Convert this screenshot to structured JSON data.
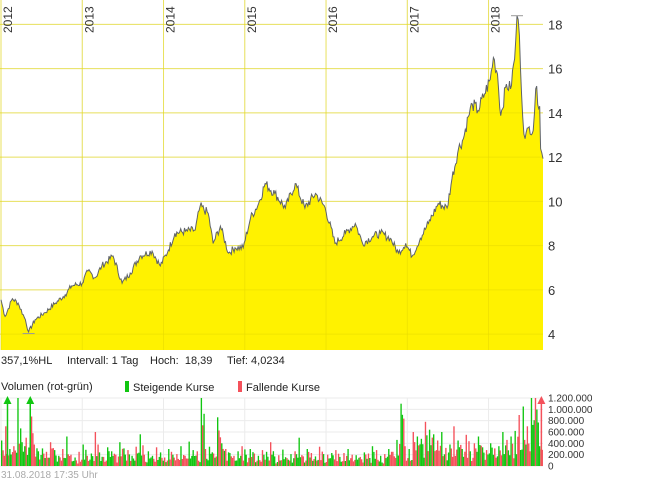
{
  "chart_data": {
    "type": "area",
    "price": {
      "x_years": [
        2012.0,
        2012.05,
        2012.14,
        2012.21,
        2012.3,
        2012.34,
        2012.42,
        2012.54,
        2012.67,
        2012.79,
        2012.87,
        2013.0,
        2013.07,
        2013.16,
        2013.24,
        2013.38,
        2013.49,
        2013.59,
        2013.71,
        2013.86,
        2013.96,
        2014.06,
        2014.14,
        2014.27,
        2014.39,
        2014.45,
        2014.55,
        2014.61,
        2014.7,
        2014.8,
        2014.88,
        2014.98,
        2015.07,
        2015.17,
        2015.25,
        2015.37,
        2015.5,
        2015.62,
        2015.74,
        2015.87,
        2015.99,
        2016.11,
        2016.24,
        2016.36,
        2016.45,
        2016.57,
        2016.67,
        2016.79,
        2016.89,
        2016.98,
        2017.06,
        2017.16,
        2017.26,
        2017.38,
        2017.49,
        2017.55,
        2017.63,
        2017.69,
        2017.75,
        2017.8,
        2017.87,
        2017.95,
        2018.02,
        2018.06,
        2018.11,
        2018.15,
        2018.22,
        2018.27,
        2018.32,
        2018.35,
        2018.38,
        2018.42,
        2018.45,
        2018.5,
        2018.55,
        2018.58,
        2018.63,
        2018.64,
        2018.67
      ],
      "values": [
        5.55,
        4.8,
        5.6,
        5.4,
        4.65,
        4.1,
        4.65,
        4.97,
        5.4,
        5.78,
        6.18,
        6.3,
        6.85,
        6.55,
        7.08,
        7.53,
        6.3,
        6.76,
        7.53,
        7.75,
        7.08,
        7.8,
        8.56,
        8.65,
        8.7,
        9.78,
        9.46,
        8.1,
        8.88,
        7.66,
        7.9,
        7.9,
        9.24,
        9.9,
        10.8,
        10.36,
        9.7,
        10.8,
        9.7,
        10.36,
        9.7,
        8.1,
        8.56,
        9.0,
        8.1,
        8.4,
        8.56,
        8.33,
        7.66,
        8.1,
        7.53,
        8.33,
        9.0,
        9.9,
        9.7,
        11.03,
        12.38,
        12.83,
        13.82,
        14.4,
        14.1,
        14.85,
        15.5,
        16.5,
        15.75,
        13.87,
        15.3,
        15.08,
        16.43,
        18.39,
        17.5,
        13.82,
        12.83,
        13.37,
        13.2,
        15.08,
        14.3,
        12.38,
        11.93
      ],
      "ylim": [
        3.28,
        19.1
      ],
      "xlim": [
        2012.0,
        2018.67
      ],
      "y_ticks": [
        "4",
        "6",
        "8",
        "10",
        "12",
        "14",
        "16",
        "18"
      ],
      "x_ticks": [
        "2012",
        "2013",
        "2014",
        "2015",
        "2016",
        "2017",
        "2018"
      ],
      "fill_color": "#fff200",
      "line_color": "#5f6368",
      "high_marker": 18.39,
      "low_marker": 4.0234
    },
    "volume": {
      "title": "Volumen (rot-grün)",
      "legend": [
        {
          "label": "Steigende Kurse",
          "color": "#11c611"
        },
        {
          "label": "Fallende Kurse",
          "color": "#f4515b"
        }
      ],
      "ylim": [
        0,
        1200000
      ],
      "y_ticks": [
        "0",
        "200.000",
        "400.000",
        "600.000",
        "800.000",
        "1.000.000",
        "1.200.000"
      ],
      "unit_note": "values in thousands; positive = rising (green), negative = falling (red)",
      "values_k": [
        450,
        -700,
        300,
        -350,
        1300,
        420,
        -500,
        1300,
        -380,
        260,
        310,
        -250,
        -420,
        280,
        180,
        -300,
        520,
        -200,
        150,
        -250,
        380,
        -180,
        220,
        -600,
        240,
        -160,
        330,
        260,
        -200,
        420,
        310,
        -280,
        180,
        -340,
        560,
        -200,
        260,
        180,
        -330,
        240,
        -150,
        300,
        200,
        -210,
        350,
        -180,
        430,
        280,
        -260,
        1250,
        -300,
        340,
        -220,
        860,
        400,
        -300,
        230,
        -180,
        260,
        -350,
        200,
        300,
        -220,
        180,
        -280,
        250,
        -420,
        170,
        -190,
        290,
        -140,
        210,
        -260,
        500,
        -170,
        300,
        -230,
        170,
        -340,
        210,
        -200,
        230,
        -280,
        160,
        -230,
        300,
        -200,
        190,
        -160,
        240,
        -220,
        350,
        -280,
        180,
        -210,
        300,
        -250,
        460,
        1100,
        -350,
        300,
        -600,
        520,
        480,
        -780,
        640,
        560,
        -450,
        600,
        -320,
        380,
        -700,
        450,
        300,
        -550,
        260,
        -400,
        520,
        330,
        -280,
        400,
        -310,
        350,
        600,
        -460,
        520,
        620,
        -900,
        1050,
        -700,
        1300,
        -1300,
        350
      ],
      "overflow_markers": [
        {
          "year": 2012.08,
          "color": "#11c611"
        },
        {
          "year": 2012.36,
          "color": "#11c611"
        },
        {
          "year": 2018.65,
          "color": "#f4515b"
        }
      ]
    }
  },
  "info": {
    "performance": "357,1%HL",
    "interval": "Intervall: 1 Tag",
    "high_label": "Hoch:",
    "high_value": "18,39",
    "low": "Tief: 4,0234"
  },
  "timestamp": "31.08.2018 17:35 Uhr"
}
